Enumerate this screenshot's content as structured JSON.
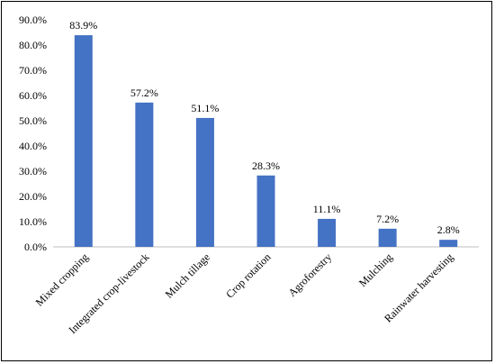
{
  "chart_data": {
    "type": "bar",
    "title": "",
    "xlabel": "",
    "ylabel": "",
    "categories": [
      "Mixed cropping",
      "Integrated crop-livestock",
      "Mulch tillage",
      "Crop rotation",
      "Agroforestry",
      "Mulching",
      "Rainwater harvesting"
    ],
    "values": [
      83.9,
      57.2,
      51.1,
      28.3,
      11.1,
      7.2,
      2.8
    ],
    "data_labels": [
      "83.9%",
      "57.2%",
      "51.1%",
      "28.3%",
      "11.1%",
      "7.2%",
      "2.8%"
    ],
    "ylim": [
      0,
      90
    ],
    "yticks": [
      0,
      10,
      20,
      30,
      40,
      50,
      60,
      70,
      80,
      90
    ],
    "ytick_labels": [
      "0.0%",
      "10.0%",
      "20.0%",
      "30.0%",
      "40.0%",
      "50.0%",
      "60.0%",
      "70.0%",
      "80.0%",
      "90.0%"
    ],
    "grid": false,
    "legend": "none",
    "bar_color": "#4472C4"
  }
}
